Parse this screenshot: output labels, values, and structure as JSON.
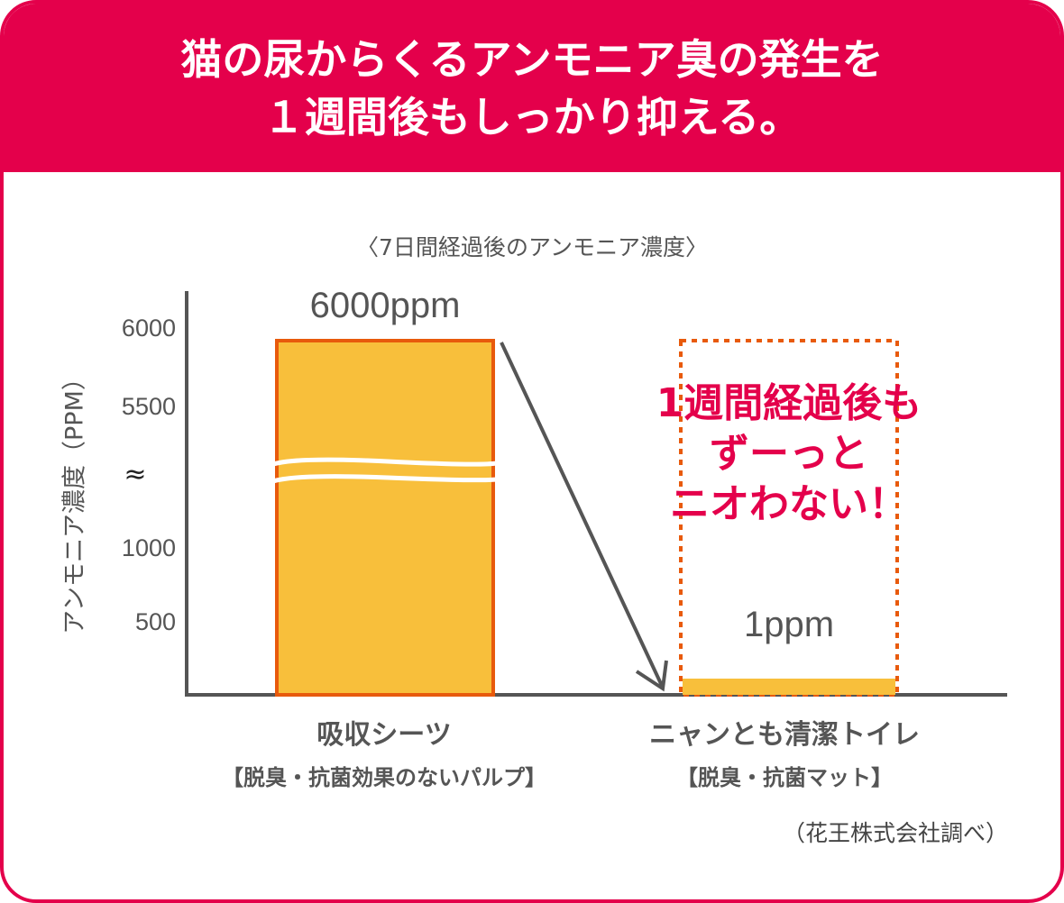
{
  "header": {
    "line1": "猫の尿からくるアンモニア臭の発生を",
    "line2": "１週間後もしっかり抑える。"
  },
  "chart_data": {
    "type": "bar",
    "title": "〈7日間経過後のアンモニア濃度〉",
    "ylabel": "アンモニア濃度（PPM）",
    "yticks": [
      "6000",
      "5500",
      "1000",
      "500"
    ],
    "axis_break_symbol": "≈",
    "broken_axis": true,
    "categories": [
      "吸収シーツ",
      "ニャンとも清潔トイレ"
    ],
    "category_subtitles": [
      "【脱臭・抗菌効果のないパルプ】",
      "【脱臭・抗菌マット】"
    ],
    "values": [
      6000,
      1
    ],
    "data_labels": [
      "6000ppm",
      "1ppm"
    ],
    "grid": false,
    "colors": {
      "bar_fill": "#F8BF3B",
      "bar_border": "#E85A0C",
      "accent": "#E4004B",
      "axis": "#555555"
    },
    "annotation": [
      "1週間経過後も",
      "ずーっと",
      "ニオわない！"
    ]
  },
  "source": "（花王株式会社調べ）"
}
